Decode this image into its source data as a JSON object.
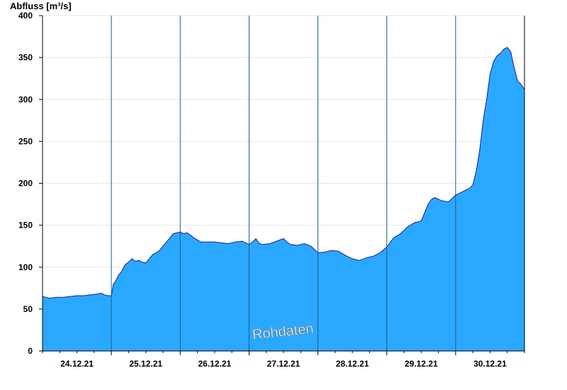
{
  "chart_data": {
    "type": "area",
    "title": "",
    "ylabel": "Abfluss [m³/s]",
    "xlabel": "",
    "ylim": [
      0,
      400
    ],
    "yticks": [
      0,
      50,
      100,
      150,
      200,
      250,
      300,
      350,
      400
    ],
    "x_unit": "days since 23.12.21 12:00",
    "x_range": [
      0,
      7
    ],
    "day_separators": [
      1,
      2,
      3,
      4,
      5,
      6
    ],
    "categories": [
      "24.12.21",
      "25.12.21",
      "26.12.21",
      "27.12.21",
      "28.12.21",
      "29.12.21",
      "30.12.21"
    ],
    "grid": true,
    "watermark": "Rohdaten",
    "colors": {
      "fill": "#2aa8ff",
      "line": "#1a1aa0",
      "separator": "#1e5a8c",
      "grid": "#e6e6e6"
    },
    "series": [
      {
        "name": "",
        "x": [
          0,
          0.05,
          0.1,
          0.2,
          0.3,
          0.4,
          0.5,
          0.6,
          0.7,
          0.8,
          0.85,
          0.9,
          0.95,
          1.0,
          1.03,
          1.06,
          1.1,
          1.15,
          1.2,
          1.25,
          1.3,
          1.35,
          1.4,
          1.45,
          1.5,
          1.55,
          1.6,
          1.65,
          1.7,
          1.8,
          1.9,
          2.0,
          2.05,
          2.1,
          2.2,
          2.3,
          2.4,
          2.5,
          2.6,
          2.7,
          2.8,
          2.9,
          3.0,
          3.05,
          3.1,
          3.15,
          3.2,
          3.3,
          3.4,
          3.5,
          3.55,
          3.6,
          3.7,
          3.8,
          3.9,
          4.0,
          4.1,
          4.2,
          4.3,
          4.4,
          4.5,
          4.6,
          4.7,
          4.8,
          4.9,
          5.0,
          5.1,
          5.2,
          5.3,
          5.4,
          5.5,
          5.55,
          5.6,
          5.65,
          5.7,
          5.8,
          5.9,
          5.95,
          6.0,
          6.1,
          6.2,
          6.25,
          6.3,
          6.35,
          6.4,
          6.45,
          6.5,
          6.55,
          6.6,
          6.65,
          6.7,
          6.75,
          6.8,
          6.85,
          6.9,
          6.95,
          7.0
        ],
        "values": [
          65,
          64,
          63,
          64,
          64,
          65,
          66,
          66,
          67,
          68,
          69,
          67,
          66,
          66,
          80,
          83,
          90,
          95,
          103,
          106,
          110,
          107,
          108,
          106,
          105,
          110,
          115,
          117,
          120,
          130,
          140,
          142,
          140,
          141,
          135,
          130,
          130,
          130,
          129,
          128,
          130,
          131,
          127,
          130,
          134,
          128,
          127,
          128,
          131,
          134,
          130,
          127,
          126,
          128,
          125,
          117,
          118,
          120,
          119,
          114,
          110,
          108,
          111,
          113,
          117,
          124,
          135,
          140,
          148,
          153,
          155,
          165,
          175,
          181,
          183,
          179,
          178,
          182,
          186,
          190,
          194,
          198,
          215,
          240,
          275,
          300,
          330,
          345,
          352,
          355,
          360,
          362,
          357,
          338,
          322,
          318,
          312
        ]
      }
    ]
  }
}
